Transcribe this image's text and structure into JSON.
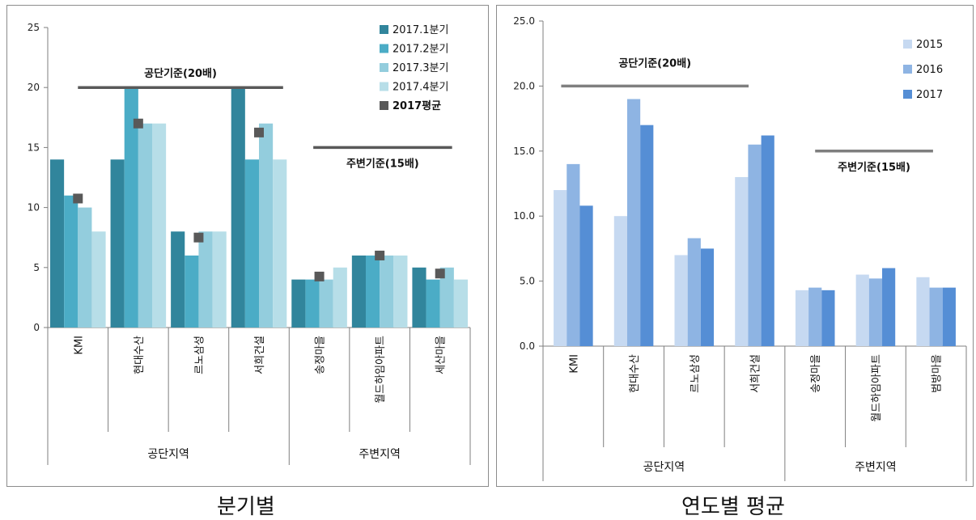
{
  "captions": {
    "left": "분기별",
    "right": "연도별  평균"
  },
  "chart_data": [
    {
      "type": "bar",
      "title": "",
      "xlabel": "",
      "ylabel": "",
      "ylim": [
        0,
        25
      ],
      "yticks": [
        "0",
        "5",
        "10",
        "15",
        "20",
        "25"
      ],
      "grid": false,
      "legend": "top-right",
      "categories": [
        "KMI",
        "현대수산",
        "르노삼성",
        "서희건설",
        "송정마을",
        "월드하임아파트",
        "세산마을"
      ],
      "groups": [
        {
          "label": "공단지역",
          "count": 4
        },
        {
          "label": "주변지역",
          "count": 3
        }
      ],
      "series": [
        {
          "name": "2017.1분기",
          "color": "#31859c",
          "values": [
            14,
            14,
            8,
            20,
            4,
            6,
            5
          ]
        },
        {
          "name": "2017.2분기",
          "color": "#4bacc6",
          "values": [
            11,
            20,
            6,
            14,
            4,
            6,
            4
          ]
        },
        {
          "name": "2017.3분기",
          "color": "#93cddd",
          "values": [
            10,
            17,
            8,
            17,
            4,
            6,
            5
          ]
        },
        {
          "name": "2017.4분기",
          "color": "#b7dee8",
          "values": [
            8,
            17,
            8,
            14,
            5,
            6,
            4
          ]
        }
      ],
      "markers": {
        "name": "2017평균",
        "color": "#595959",
        "values": [
          10.75,
          17,
          7.5,
          16.25,
          4.25,
          6,
          4.5
        ]
      },
      "reference_lines": [
        {
          "label": "공단기준(20배)",
          "value": 20,
          "from": 0,
          "to": 3,
          "color": "#595959"
        },
        {
          "label": "주변기준(15배)",
          "value": 15,
          "from": 4,
          "to": 6,
          "color": "#595959"
        }
      ]
    },
    {
      "type": "bar",
      "title": "",
      "xlabel": "",
      "ylabel": "",
      "ylim": [
        0,
        25
      ],
      "yticks": [
        "0.0",
        "5.0",
        "10.0",
        "15.0",
        "20.0",
        "25.0"
      ],
      "grid": false,
      "legend": "top-right",
      "categories": [
        "KMI",
        "현대수산",
        "르노삼성",
        "서희건설",
        "송정마을",
        "월드하임아파트",
        "범방마을"
      ],
      "groups": [
        {
          "label": "공단지역",
          "count": 4
        },
        {
          "label": "주변지역",
          "count": 3
        }
      ],
      "series": [
        {
          "name": "2015",
          "color": "#c6d9f1",
          "values": [
            12,
            10,
            7,
            13,
            4.3,
            5.5,
            5.3
          ]
        },
        {
          "name": "2016",
          "color": "#8eb4e3",
          "values": [
            14,
            19,
            8.3,
            15.5,
            4.5,
            5.2,
            4.5
          ]
        },
        {
          "name": "2017",
          "color": "#558ed5",
          "values": [
            10.8,
            17,
            7.5,
            16.2,
            4.3,
            6,
            4.5
          ]
        }
      ],
      "reference_lines": [
        {
          "label": "공단기준(20배)",
          "value": 20,
          "from": 0,
          "to": 3,
          "color": "#7f7f7f"
        },
        {
          "label": "주변기준(15배)",
          "value": 15,
          "from": 4,
          "to": 6,
          "color": "#7f7f7f"
        }
      ]
    }
  ]
}
